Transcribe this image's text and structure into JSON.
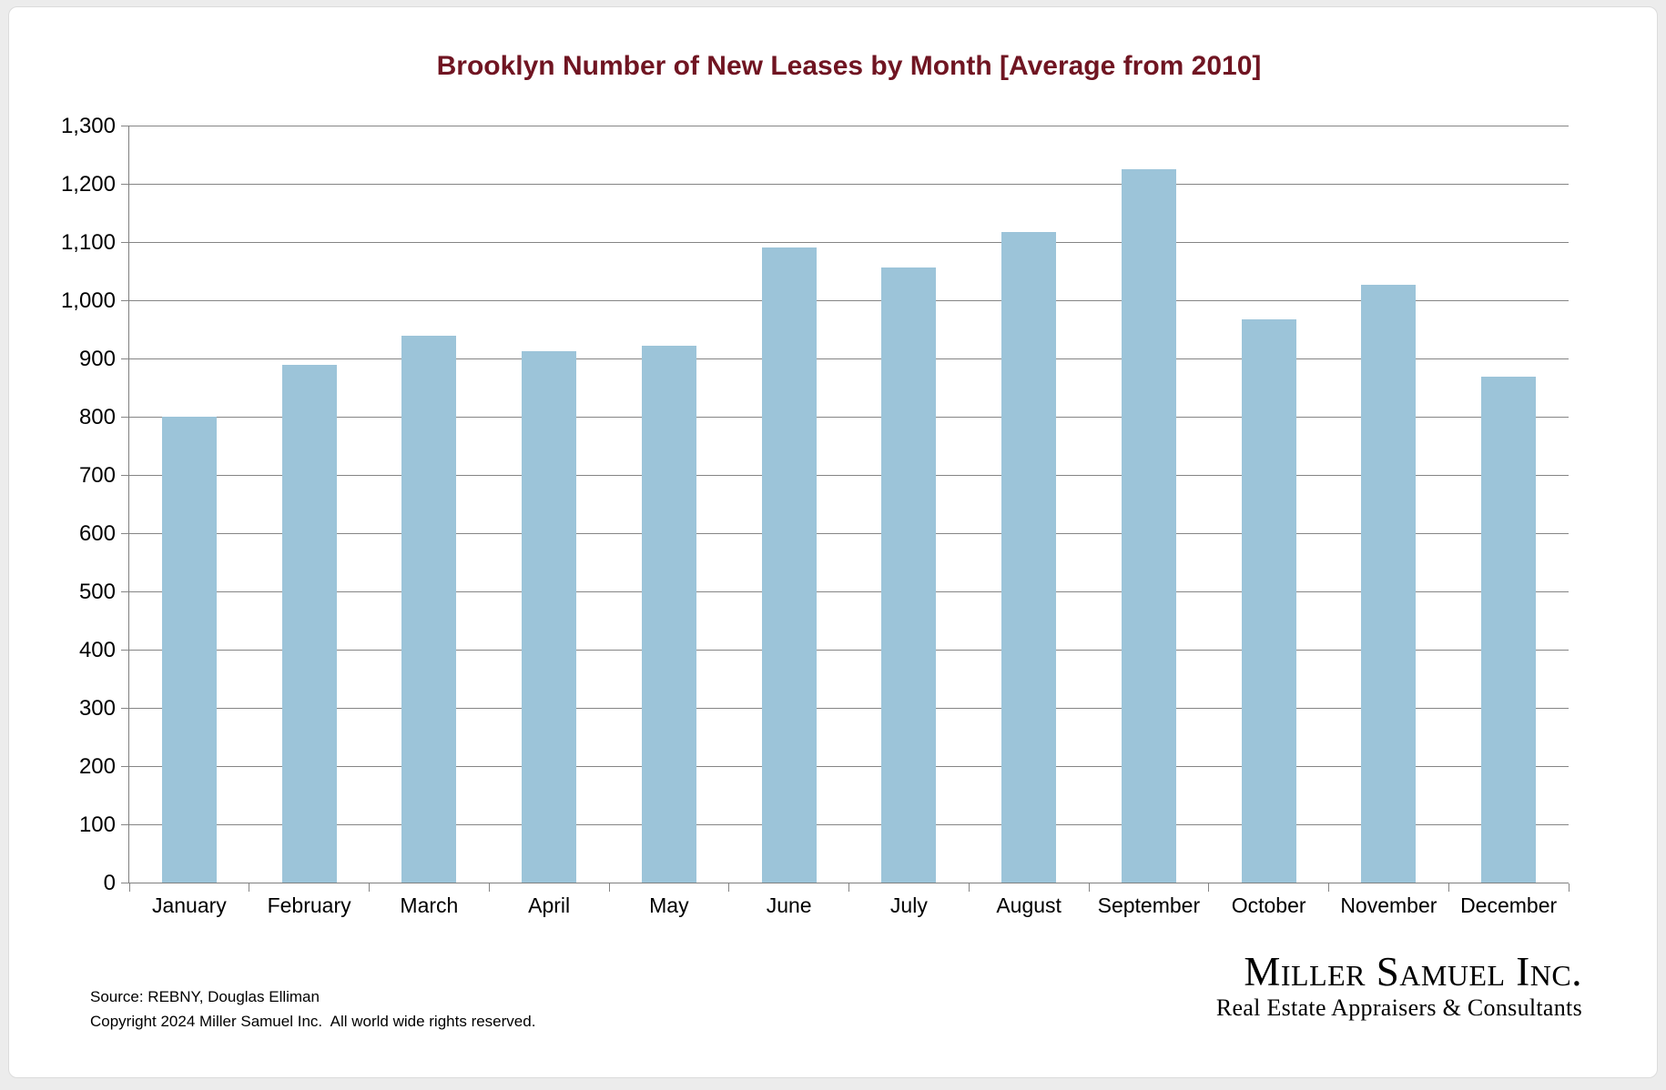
{
  "page": {
    "background_color": "#ececec",
    "card_color": "#ffffff"
  },
  "chart_data": {
    "type": "bar",
    "title": "Brooklyn Number of New Leases by Month [Average from 2010]",
    "title_color": "#701522",
    "categories": [
      "January",
      "February",
      "March",
      "April",
      "May",
      "June",
      "July",
      "August",
      "September",
      "October",
      "November",
      "December"
    ],
    "values": [
      800,
      890,
      940,
      912,
      922,
      1091,
      1056,
      1117,
      1225,
      967,
      1027,
      869
    ],
    "xlabel": "",
    "ylabel": "",
    "ylim": [
      0,
      1300
    ],
    "ytick_step": 100,
    "ytick_labels": [
      "0",
      "100",
      "200",
      "300",
      "400",
      "500",
      "600",
      "700",
      "800",
      "900",
      "1,000",
      "1,100",
      "1,200",
      "1,300"
    ],
    "grid": true,
    "legend": "none",
    "bar_color": "#9cc4d9",
    "gridline_color": "#858585",
    "axis_color": "#7f7f7f"
  },
  "footer": {
    "source_line": "Source: REBNY, Douglas Elliman",
    "copyright_line": "Copyright 2024 Miller Samuel Inc.  All world wide rights reserved."
  },
  "logo": {
    "name": "Miller Samuel Inc.",
    "tagline": "Real Estate Appraisers & Consultants",
    "name_color": "#8a171b",
    "tagline_color": "#8e8e8e"
  }
}
